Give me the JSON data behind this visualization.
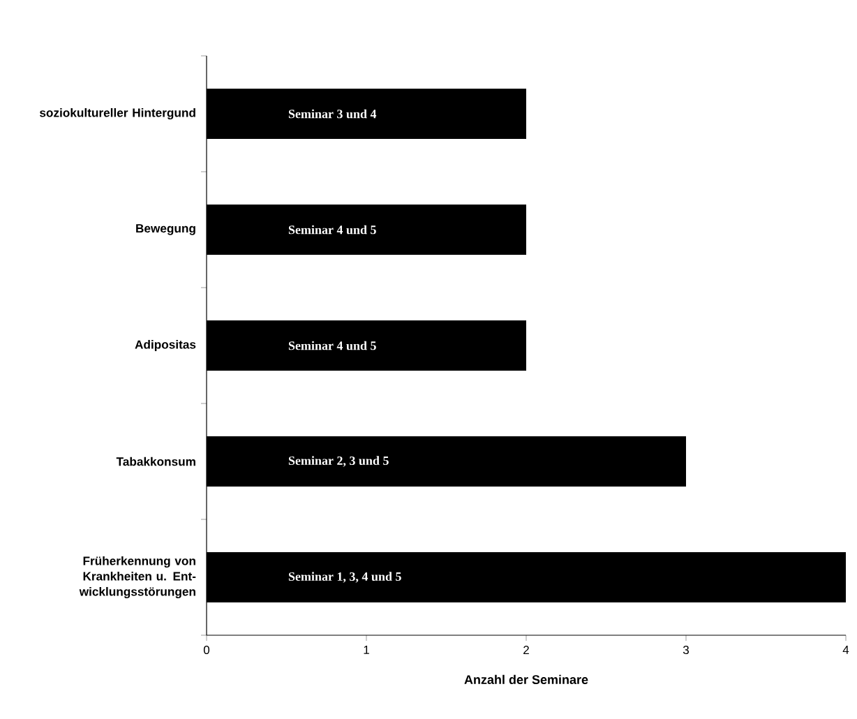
{
  "chart_data": {
    "type": "bar",
    "orientation": "horizontal",
    "categories": [
      "soziokultureller Hintergund",
      "Bewegung",
      "Adipositas",
      "Tabakkonsum",
      "Früherkennung von Krankheiten u. Ent-wicklungsstörungen"
    ],
    "values": [
      2,
      2,
      2,
      3,
      4
    ],
    "value_labels": [
      "Seminar 3 und 4",
      "Seminar 4 und 5",
      "Seminar 4 und 5",
      "Seminar 2, 3 und 5",
      "Seminar 1, 3, 4  und 5"
    ],
    "color": "#000000",
    "xlabel": "Anzahl der Seminare",
    "xlim": [
      0,
      4
    ],
    "xticks": [
      0,
      1,
      2,
      3,
      4
    ]
  }
}
